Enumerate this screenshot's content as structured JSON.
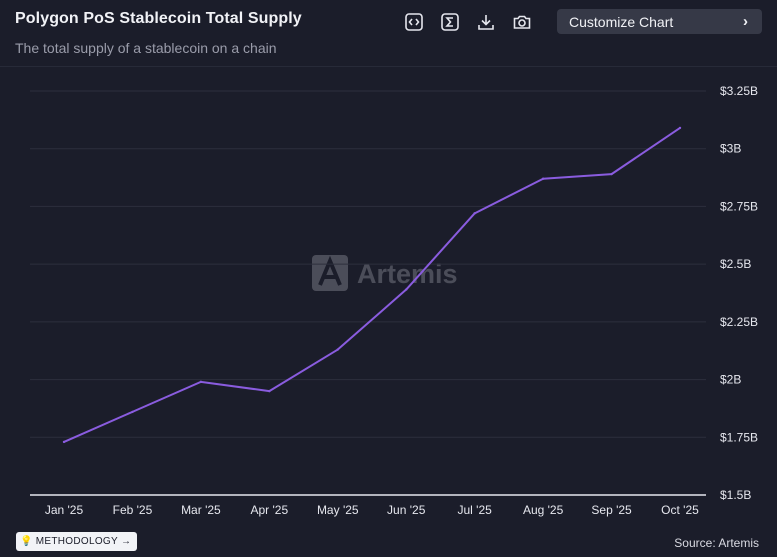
{
  "header": {
    "title": "Polygon PoS Stablecoin Total Supply",
    "subtitle": "The total supply of a stablecoin on a chain",
    "customize_label": "Customize Chart"
  },
  "footer": {
    "methodology_label": "METHODOLOGY",
    "methodology_arrow": "→",
    "source": "Source: Artemis"
  },
  "watermark": "Artemis",
  "colors": {
    "background": "#1b1d2a",
    "line": "#8a5cdf",
    "grid": "#2c2f3d",
    "axis": "#e6e7ee",
    "tick": "#e6e7ee"
  },
  "chart_data": {
    "type": "line",
    "title": "Polygon PoS Stablecoin Total Supply",
    "xlabel": "",
    "ylabel": "",
    "categories": [
      "Jan '25",
      "Feb '25",
      "Mar '25",
      "Apr '25",
      "May '25",
      "Jun '25",
      "Jul '25",
      "Aug '25",
      "Sep '25",
      "Oct '25"
    ],
    "series": [
      {
        "name": "Total Supply",
        "values": [
          1.73,
          1.86,
          1.99,
          1.95,
          2.13,
          2.39,
          2.72,
          2.87,
          2.89,
          3.09
        ]
      }
    ],
    "ylim": [
      1.5,
      3.25
    ],
    "yticks": [
      1.5,
      1.75,
      2,
      2.25,
      2.5,
      2.75,
      3,
      3.25
    ],
    "ytick_labels": [
      "$1.5B",
      "$1.75B",
      "$2B",
      "$2.25B",
      "$2.5B",
      "$2.75B",
      "$3B",
      "$3.25B"
    ],
    "y_axis_position": "right",
    "grid": true,
    "legend": "none"
  }
}
